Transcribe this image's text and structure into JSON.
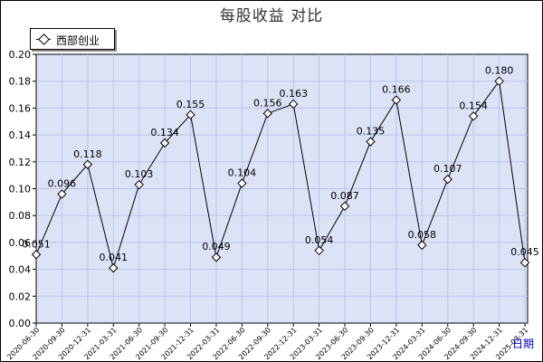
{
  "chart_data": {
    "type": "line",
    "title": "每股收益  对比",
    "xlabel": "日期",
    "ylabel": "",
    "ylim": [
      0,
      0.2
    ],
    "yticks": [
      "0.00",
      "0.02",
      "0.04",
      "0.06",
      "0.08",
      "0.10",
      "0.12",
      "0.14",
      "0.16",
      "0.18",
      "0.20"
    ],
    "grid": true,
    "legend_position": "top-left",
    "x": [
      "2020-06-30",
      "2020-09-30",
      "2020-12-31",
      "2021-03-31",
      "2021-06-30",
      "2021-09-30",
      "2021-12-31",
      "2022-03-31",
      "2022-06-30",
      "2022-09-30",
      "2022-12-31",
      "2023-03-31",
      "2023-06-30",
      "2023-09-30",
      "2023-12-31",
      "2024-03-31",
      "2024-06-30",
      "2024-09-30",
      "2024-12-31",
      "2025-03-31"
    ],
    "series": [
      {
        "name": "西部创业",
        "values": [
          0.051,
          0.096,
          0.118,
          0.041,
          0.103,
          0.134,
          0.155,
          0.049,
          0.104,
          0.156,
          0.163,
          0.054,
          0.087,
          0.135,
          0.166,
          0.058,
          0.107,
          0.154,
          0.18,
          0.045
        ],
        "labels": [
          "0.051",
          "0.096",
          "0.118",
          "0.041",
          "0.103",
          "0.134",
          "0.155",
          "0.049",
          "0.104",
          "0.156",
          "0.163",
          "0.054",
          "0.087",
          "0.135",
          "0.166",
          "0.058",
          "0.107",
          "0.154",
          "0.180",
          "0.045"
        ]
      }
    ]
  },
  "colors": {
    "plot_background": "#dde3f7",
    "grid": "#b9c4e6",
    "line": "#000000",
    "marker_fill": "#ffffff",
    "axis_title": "#0000cc"
  }
}
